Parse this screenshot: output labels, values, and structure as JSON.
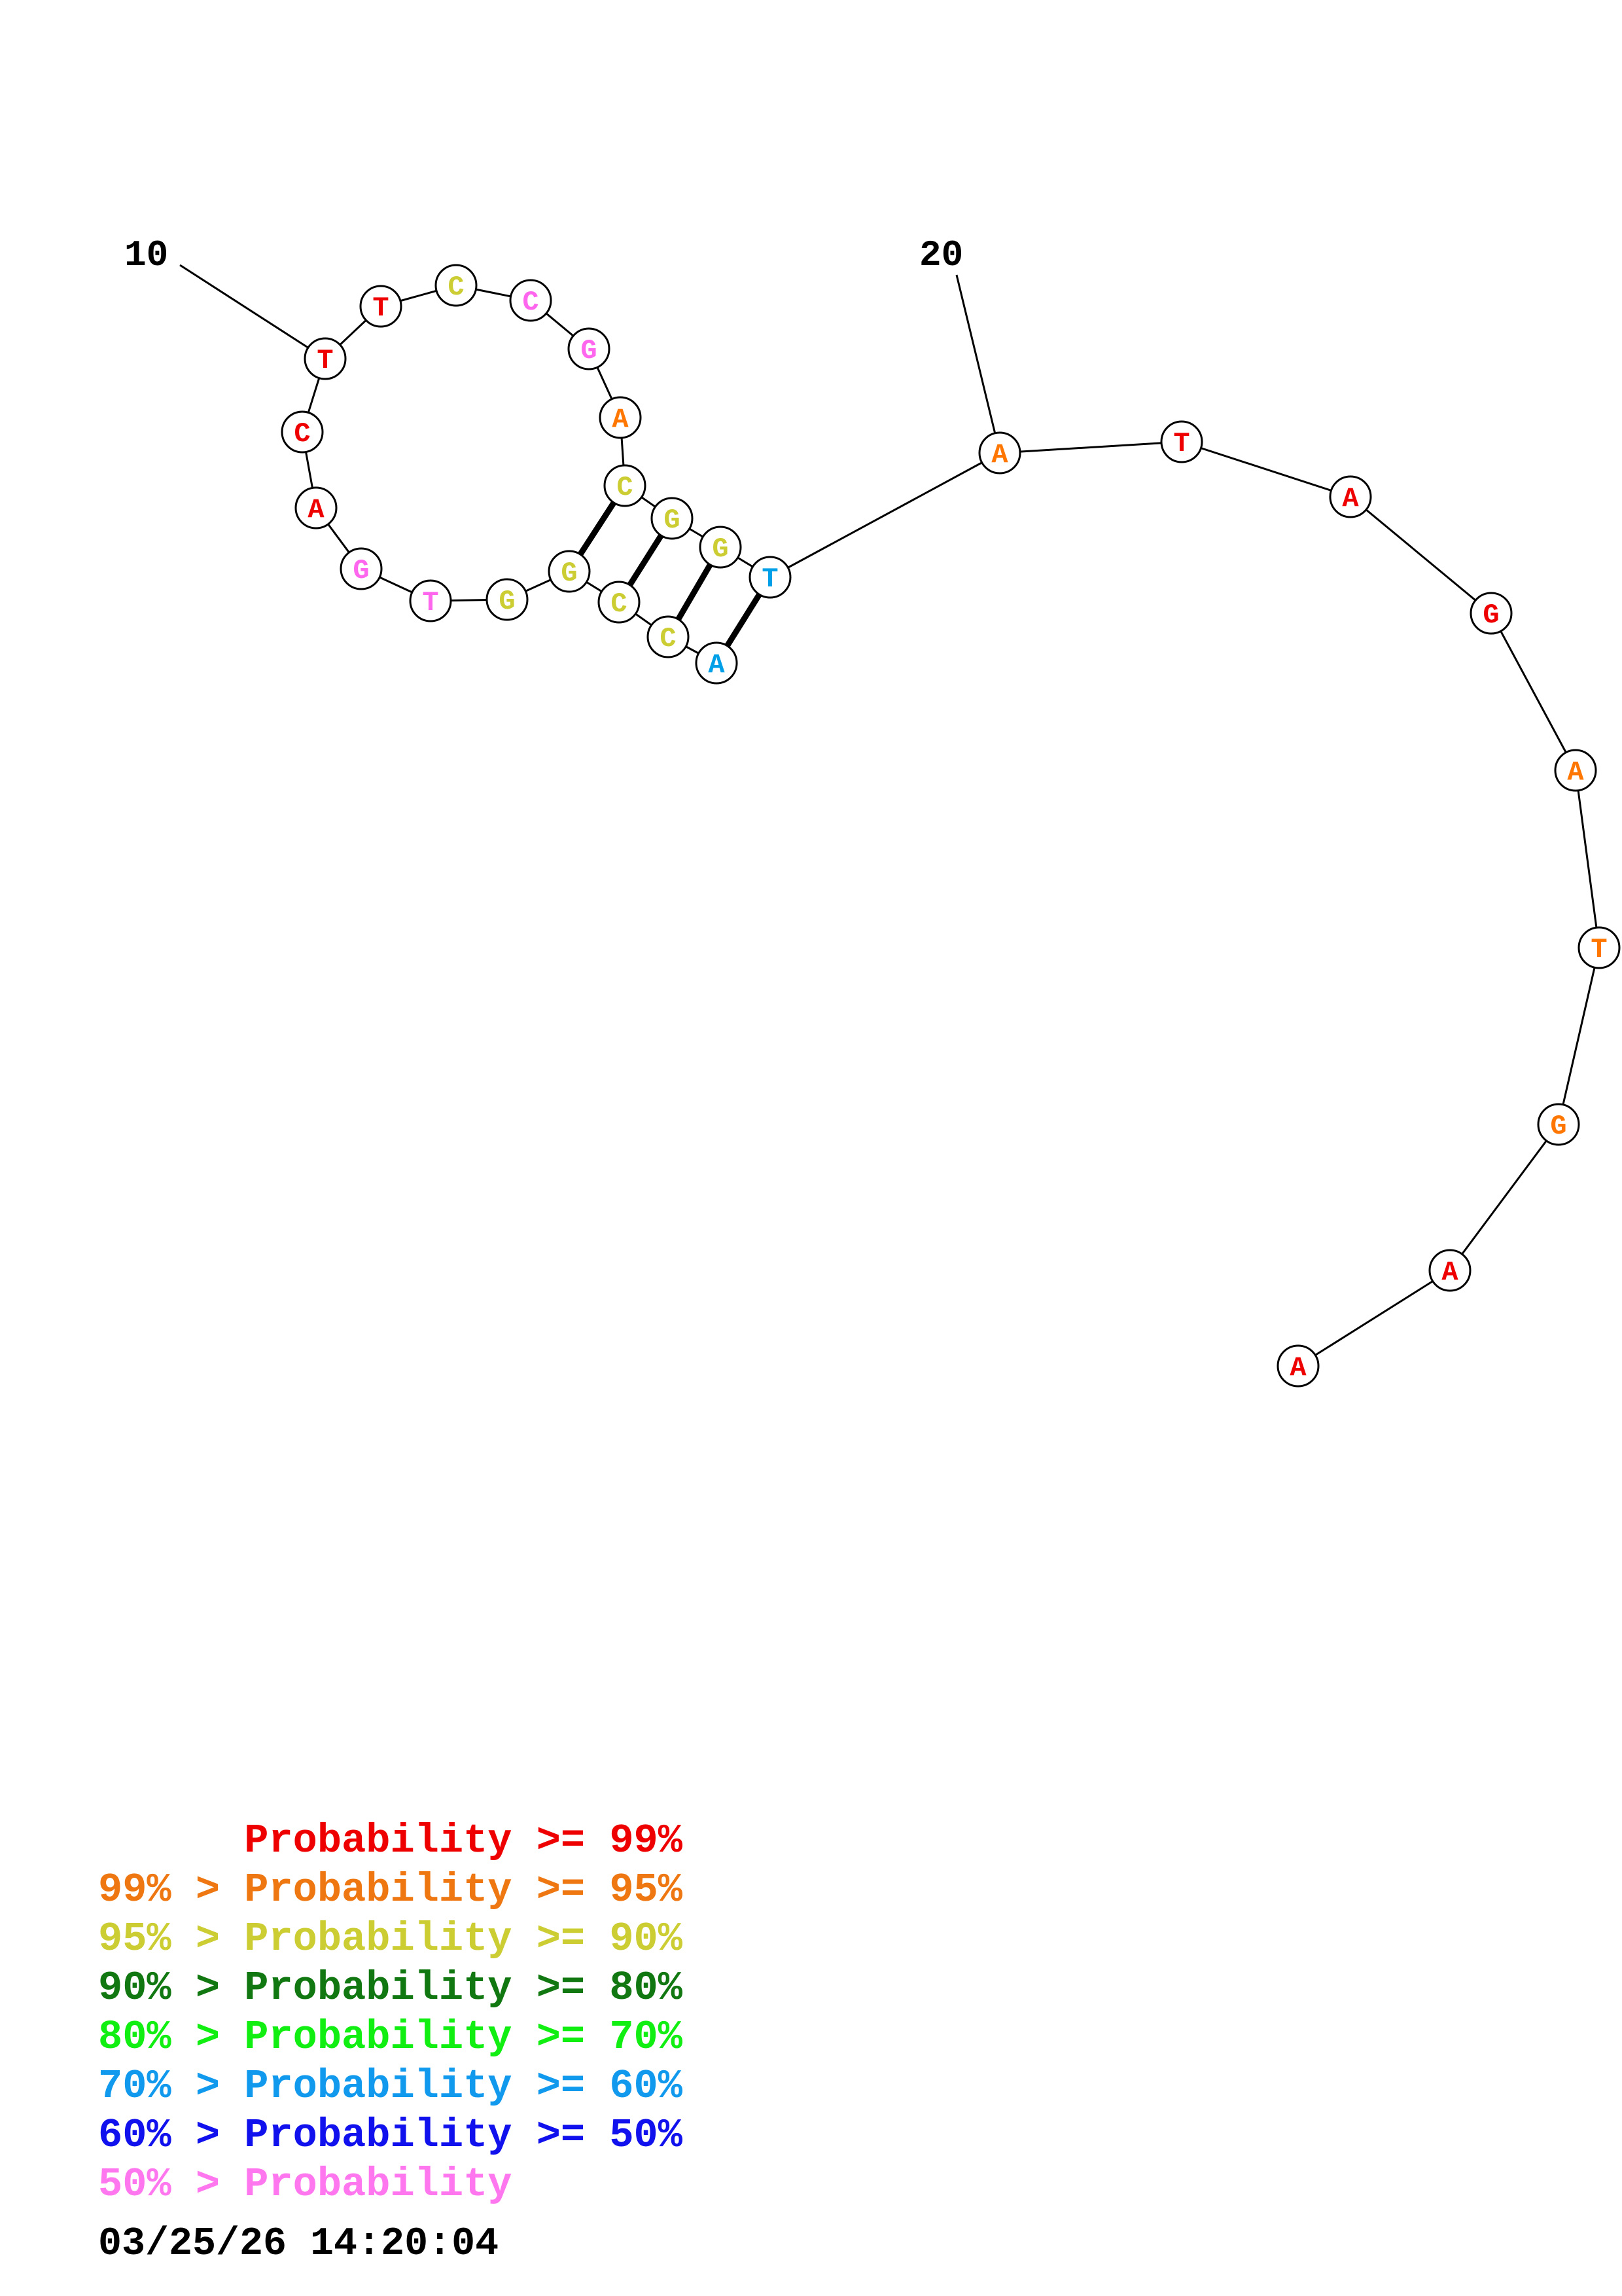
{
  "sequence": [
    {
      "n": 1,
      "base": "A",
      "color": "#00a0e8"
    },
    {
      "n": 2,
      "base": "C",
      "color": "#cccc33"
    },
    {
      "n": 3,
      "base": "C",
      "color": "#cccc33"
    },
    {
      "n": 4,
      "base": "G",
      "color": "#cccc33"
    },
    {
      "n": 5,
      "base": "G",
      "color": "#cccc33"
    },
    {
      "n": 6,
      "base": "T",
      "color": "#ff66ee"
    },
    {
      "n": 7,
      "base": "G",
      "color": "#ff66ee"
    },
    {
      "n": 8,
      "base": "A",
      "color": "#ee0000"
    },
    {
      "n": 9,
      "base": "C",
      "color": "#ee0000"
    },
    {
      "n": 10,
      "base": "T",
      "color": "#ee0000"
    },
    {
      "n": 11,
      "base": "T",
      "color": "#ee0000"
    },
    {
      "n": 12,
      "base": "C",
      "color": "#cccc33"
    },
    {
      "n": 13,
      "base": "C",
      "color": "#ff66ee"
    },
    {
      "n": 14,
      "base": "G",
      "color": "#ff66ee"
    },
    {
      "n": 15,
      "base": "A",
      "color": "#ff7700"
    },
    {
      "n": 16,
      "base": "C",
      "color": "#cccc33"
    },
    {
      "n": 17,
      "base": "G",
      "color": "#cccc33"
    },
    {
      "n": 18,
      "base": "G",
      "color": "#cccc33"
    },
    {
      "n": 19,
      "base": "T",
      "color": "#00a0e8"
    },
    {
      "n": 20,
      "base": "A",
      "color": "#ff7700"
    },
    {
      "n": 21,
      "base": "T",
      "color": "#ee0000"
    },
    {
      "n": 22,
      "base": "A",
      "color": "#ee0000"
    },
    {
      "n": 23,
      "base": "G",
      "color": "#ee0000"
    },
    {
      "n": 24,
      "base": "A",
      "color": "#ff7700"
    },
    {
      "n": 25,
      "base": "T",
      "color": "#ff7700"
    },
    {
      "n": 26,
      "base": "G",
      "color": "#ff7700"
    },
    {
      "n": 27,
      "base": "A",
      "color": "#ee0000"
    },
    {
      "n": 28,
      "base": "A",
      "color": "#ee0000"
    }
  ],
  "pairs": [
    [
      1,
      19
    ],
    [
      2,
      18
    ],
    [
      3,
      17
    ],
    [
      4,
      16
    ]
  ],
  "index_labels": [
    {
      "text": "10",
      "n": 10
    },
    {
      "text": "20",
      "n": 20
    }
  ],
  "legend": [
    {
      "text": "      Probability >= 99%",
      "color": "#ee0000"
    },
    {
      "text": "99% > Probability >= 95%",
      "color": "#ee7711"
    },
    {
      "text": "95% > Probability >= 90%",
      "color": "#cccc33"
    },
    {
      "text": "90% > Probability >= 80%",
      "color": "#117711"
    },
    {
      "text": "80% > Probability >= 70%",
      "color": "#11ee11"
    },
    {
      "text": "70% > Probability >= 60%",
      "color": "#1199ee"
    },
    {
      "text": "60% > Probability >= 50%",
      "color": "#1111ee"
    },
    {
      "text": "50% > Probability",
      "color": "#ff77ee"
    }
  ],
  "timestamp": "03/25/26 14:20:04"
}
